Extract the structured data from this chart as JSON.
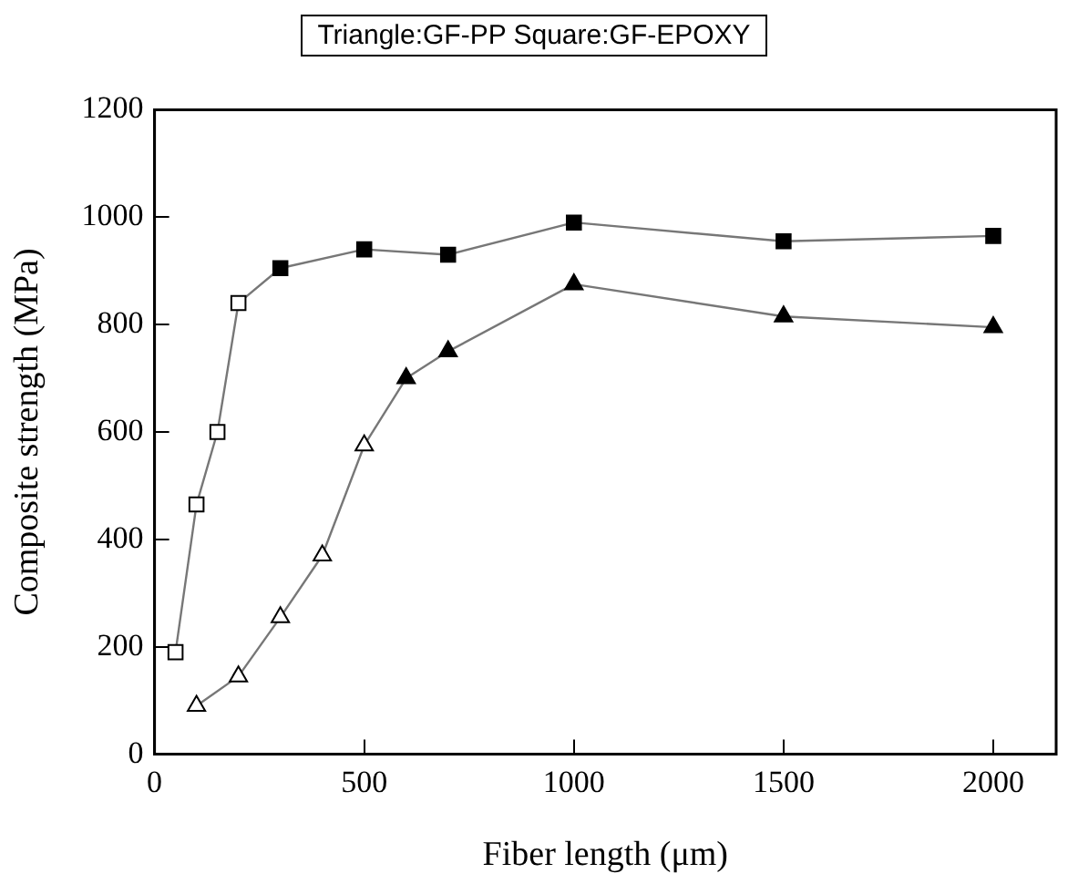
{
  "chart_data": {
    "type": "line",
    "title": "Triangle:GF-PP  Square:GF-EPOXY",
    "xlabel": "Fiber length (μm)",
    "ylabel": "Composite strength (MPa)",
    "xlim": [
      0,
      2150
    ],
    "xticks": [
      0,
      500,
      1000,
      1500,
      2000
    ],
    "ylim": [
      0,
      1200
    ],
    "yticks": [
      0,
      200,
      400,
      600,
      800,
      1000,
      1200
    ],
    "grid": false,
    "legend": false,
    "series": [
      {
        "color": "#000000",
        "marker": "square",
        "x": [
          50,
          100,
          150,
          200,
          300,
          500,
          700,
          1000,
          1500,
          2000
        ],
        "values": [
          190,
          465,
          600,
          840,
          905,
          940,
          930,
          990,
          955,
          965
        ],
        "colors": [
          "#ffffff",
          "#ffffff",
          "#ffffff",
          "#ffffff",
          "#000000",
          "#000000",
          "#000000",
          "#000000",
          "#000000",
          "#000000"
        ]
      },
      {
        "color": "#000000",
        "marker": "triangle",
        "x": [
          100,
          200,
          300,
          400,
          500,
          600,
          700,
          1000,
          1500,
          2000
        ],
        "values": [
          90,
          145,
          255,
          370,
          575,
          700,
          750,
          875,
          815,
          795
        ],
        "colors": [
          "#ffffff",
          "#ffffff",
          "#ffffff",
          "#ffffff",
          "#ffffff",
          "#000000",
          "#000000",
          "#000000",
          "#000000",
          "#000000"
        ]
      }
    ]
  }
}
